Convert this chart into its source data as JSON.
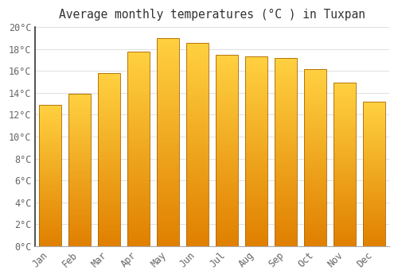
{
  "title": "Average monthly temperatures (°C ) in Tuxpan",
  "months": [
    "Jan",
    "Feb",
    "Mar",
    "Apr",
    "May",
    "Jun",
    "Jul",
    "Aug",
    "Sep",
    "Oct",
    "Nov",
    "Dec"
  ],
  "values": [
    12.9,
    13.9,
    15.8,
    17.8,
    19.0,
    18.6,
    17.5,
    17.3,
    17.2,
    16.2,
    14.9,
    13.2
  ],
  "bar_color_bottom": "#E08000",
  "bar_color_top": "#FFD040",
  "bar_edge_color": "#888800",
  "background_color": "#FFFFFF",
  "grid_color": "#E0E0E0",
  "title_color": "#333333",
  "tick_label_color": "#666666",
  "ylim": [
    0,
    20
  ],
  "ytick_step": 2,
  "title_fontsize": 10.5,
  "tick_fontsize": 8.5,
  "bar_width": 0.75,
  "figsize": [
    5.0,
    3.5
  ],
  "dpi": 100
}
